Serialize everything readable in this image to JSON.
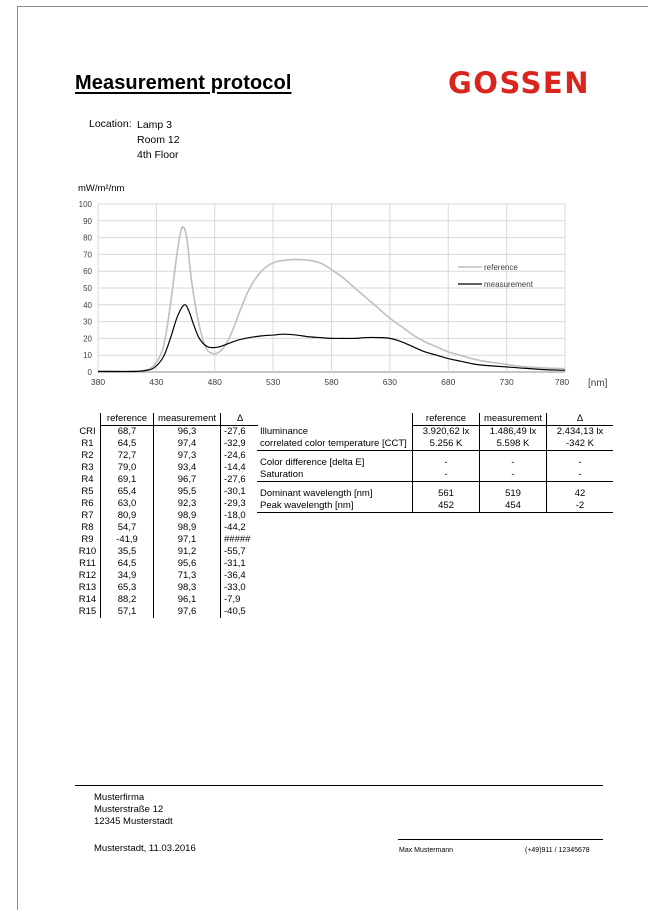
{
  "document": {
    "title": "Measurement protocol",
    "logo_text": "GOSSEN",
    "logo_color": "#d8261f"
  },
  "location": {
    "label": "Location:",
    "lines": [
      "Lamp 3",
      "Room 12",
      "4th Floor"
    ]
  },
  "chart_data": {
    "type": "line",
    "y_unit": "mW/m²/nm",
    "x_unit": "[nm]",
    "xlim": [
      380,
      780
    ],
    "ylim": [
      0,
      100
    ],
    "x_ticks": [
      380,
      430,
      480,
      530,
      580,
      630,
      680,
      730,
      780
    ],
    "y_ticks": [
      0,
      10,
      20,
      30,
      40,
      50,
      60,
      70,
      80,
      90,
      100
    ],
    "grid": true,
    "legend_position": "right",
    "series": [
      {
        "name": "reference",
        "color": "#bfbfbf",
        "x": [
          380,
          410,
          420,
          428,
          436,
          442,
          448,
          452,
          456,
          460,
          466,
          472,
          478,
          484,
          490,
          496,
          502,
          510,
          520,
          530,
          540,
          550,
          561,
          570,
          580,
          590,
          600,
          610,
          620,
          630,
          640,
          650,
          660,
          670,
          680,
          690,
          700,
          710,
          720,
          730,
          740,
          760,
          780
        ],
        "y": [
          0.5,
          0.5,
          1,
          4,
          15,
          40,
          72,
          86,
          80,
          55,
          30,
          15,
          11,
          12,
          17,
          26,
          37,
          50,
          60,
          65,
          66.5,
          67,
          66.5,
          65,
          61,
          56,
          50,
          44,
          38,
          32,
          27,
          22,
          18,
          15,
          12,
          10,
          8,
          6.5,
          5.5,
          4.5,
          3.5,
          2.5,
          2
        ]
      },
      {
        "name": "measurement",
        "color": "#000000",
        "x": [
          380,
          410,
          420,
          428,
          436,
          442,
          448,
          454,
          458,
          462,
          466,
          470,
          474,
          478,
          484,
          490,
          500,
          510,
          520,
          530,
          540,
          550,
          560,
          570,
          580,
          590,
          600,
          610,
          620,
          630,
          640,
          650,
          660,
          670,
          680,
          690,
          700,
          710,
          720,
          730,
          740,
          760,
          780
        ],
        "y": [
          0.3,
          0.3,
          0.8,
          2.5,
          9,
          20,
          33,
          40,
          36,
          28,
          21,
          17,
          15,
          14.5,
          15,
          16.5,
          19,
          20.5,
          21.5,
          22,
          22.5,
          22,
          21,
          20.5,
          20,
          20,
          20,
          20.5,
          20.5,
          20,
          18,
          15,
          12,
          10,
          8,
          6.5,
          5,
          4,
          3.5,
          3,
          2.5,
          1.5,
          1
        ]
      }
    ]
  },
  "cri_table": {
    "headers": [
      "",
      "reference",
      "measurement",
      "Δ"
    ],
    "rows": [
      [
        "CRI",
        "68,7",
        "96,3",
        "-27,6"
      ],
      [
        "R1",
        "64,5",
        "97,4",
        "-32,9"
      ],
      [
        "R2",
        "72,7",
        "97,3",
        "-24,6"
      ],
      [
        "R3",
        "79,0",
        "93,4",
        "-14,4"
      ],
      [
        "R4",
        "69,1",
        "96,7",
        "-27,6"
      ],
      [
        "R5",
        "65,4",
        "95,5",
        "-30,1"
      ],
      [
        "R6",
        "63,0",
        "92,3",
        "-29,3"
      ],
      [
        "R7",
        "80,9",
        "98,9",
        "-18,0"
      ],
      [
        "R8",
        "54,7",
        "98,9",
        "-44,2"
      ],
      [
        "R9",
        "-41,9",
        "97,1",
        "#####"
      ],
      [
        "R10",
        "35,5",
        "91,2",
        "-55,7"
      ],
      [
        "R11",
        "64,5",
        "95,6",
        "-31,1"
      ],
      [
        "R12",
        "34,9",
        "71,3",
        "-36,4"
      ],
      [
        "R13",
        "65,3",
        "98,3",
        "-33,0"
      ],
      [
        "R14",
        "88,2",
        "96,1",
        "-7,9"
      ],
      [
        "R15",
        "57,1",
        "97,6",
        "-40,5"
      ]
    ]
  },
  "measurement_table": {
    "headers": [
      "",
      "reference",
      "measurement",
      "Δ"
    ],
    "groups": [
      [
        [
          "Illuminance",
          "3.920,62 lx",
          "1.486,49 lx",
          "2.434,13 lx"
        ],
        [
          "correlated color temperature [CCT]",
          "5.256 K",
          "5.598 K",
          "-342 K"
        ]
      ],
      [
        [
          "Color difference [delta E]",
          "-",
          "-",
          "-"
        ],
        [
          "Saturation",
          "-",
          "-",
          "-"
        ]
      ],
      [
        [
          "Dominant wavelength [nm]",
          "561",
          "519",
          "42"
        ],
        [
          "Peak wavelength [nm]",
          "452",
          "454",
          "-2"
        ]
      ]
    ]
  },
  "footer": {
    "address": [
      "Musterfirma",
      "Musterstraße 12",
      "12345 Musterstadt"
    ],
    "place_date": "Musterstadt,  11.03.2016",
    "signer": "Max Mustermann",
    "phone": "(+49)911 / 12345678"
  }
}
